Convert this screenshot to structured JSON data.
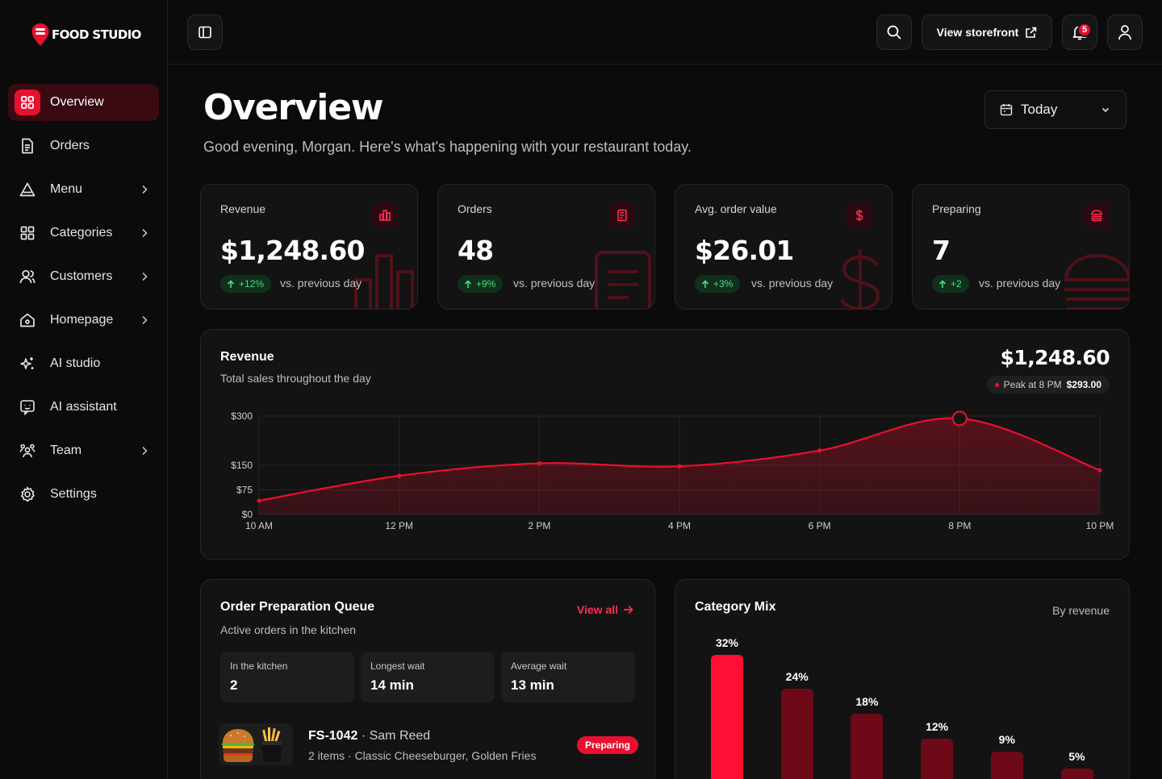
{
  "brand": {
    "name": "FOOD STUDIO",
    "accent": "#e8102e"
  },
  "sidebar": {
    "items": [
      {
        "label": "Overview",
        "icon": "grid-icon",
        "active": true,
        "chevron": false
      },
      {
        "label": "Orders",
        "icon": "document-icon",
        "active": false,
        "chevron": false
      },
      {
        "label": "Menu",
        "icon": "triangle-icon",
        "active": false,
        "chevron": true
      },
      {
        "label": "Categories",
        "icon": "squares-icon",
        "active": false,
        "chevron": true
      },
      {
        "label": "Customers",
        "icon": "users-icon",
        "active": false,
        "chevron": true
      },
      {
        "label": "Homepage",
        "icon": "home-icon",
        "active": false,
        "chevron": true
      },
      {
        "label": "AI studio",
        "icon": "sparkles-icon",
        "active": false,
        "chevron": false
      },
      {
        "label": "AI assistant",
        "icon": "chat-icon",
        "active": false,
        "chevron": false
      },
      {
        "label": "Team",
        "icon": "team-icon",
        "active": false,
        "chevron": true
      },
      {
        "label": "Settings",
        "icon": "gear-icon",
        "active": false,
        "chevron": false
      }
    ]
  },
  "topbar": {
    "storefront_label": "View storefront",
    "notification_count": "5"
  },
  "header": {
    "title": "Overview",
    "subtitle": "Good evening, Morgan. Here's what's happening with your restaurant today.",
    "range": "Today"
  },
  "stats": [
    {
      "label": "Revenue",
      "value": "$1,248.60",
      "delta": "+12%",
      "vs": "vs. previous day",
      "icon": "bar-chart-icon"
    },
    {
      "label": "Orders",
      "value": "48",
      "delta": "+9%",
      "vs": "vs. previous day",
      "icon": "receipt-icon"
    },
    {
      "label": "Avg. order value",
      "value": "$26.01",
      "delta": "+3%",
      "vs": "vs. previous day",
      "icon": "dollar-icon"
    },
    {
      "label": "Preparing",
      "value": "7",
      "delta": "+2",
      "vs": "vs. previous day",
      "icon": "burger-icon"
    }
  ],
  "revenue": {
    "title": "Revenue",
    "subtitle": "Total sales throughout the day",
    "total": "$1,248.60",
    "peak_label": "Peak at 8 PM",
    "peak_value": "$293.00"
  },
  "chart_data": {
    "type": "area",
    "x": [
      "10 AM",
      "12 PM",
      "2 PM",
      "4 PM",
      "6 PM",
      "8 PM",
      "10 PM"
    ],
    "values": [
      42,
      118,
      156,
      147,
      195,
      293,
      135
    ],
    "ylim": [
      0,
      300
    ],
    "yticks": [
      0,
      75,
      150,
      300
    ],
    "ytick_labels": [
      "$0",
      "$75",
      "$150",
      "$300"
    ],
    "grid": true,
    "color": "#e8102e"
  },
  "queue": {
    "title": "Order Preparation Queue",
    "subtitle": "Active orders in the kitchen",
    "view_all": "View all",
    "metrics": [
      {
        "label": "In the kitchen",
        "value": "2"
      },
      {
        "label": "Longest wait",
        "value": "14 min"
      },
      {
        "label": "Average wait",
        "value": "13 min"
      }
    ],
    "orders": [
      {
        "id": "FS-1042",
        "customer": "Sam Reed",
        "items": "2 items · Classic Cheeseburger, Golden Fries",
        "status": "Preparing"
      }
    ]
  },
  "category_mix": {
    "title": "Category Mix",
    "by": "By revenue",
    "chart_data": {
      "type": "bar",
      "values": [
        32,
        24,
        18,
        12,
        9,
        5
      ],
      "labels": [
        "32%",
        "24%",
        "18%",
        "12%",
        "9%",
        "5%"
      ],
      "colors": [
        "#ff0f33",
        "#6e0a17",
        "#6e0a17",
        "#6e0a17",
        "#6e0a17",
        "#6e0a17"
      ]
    }
  }
}
